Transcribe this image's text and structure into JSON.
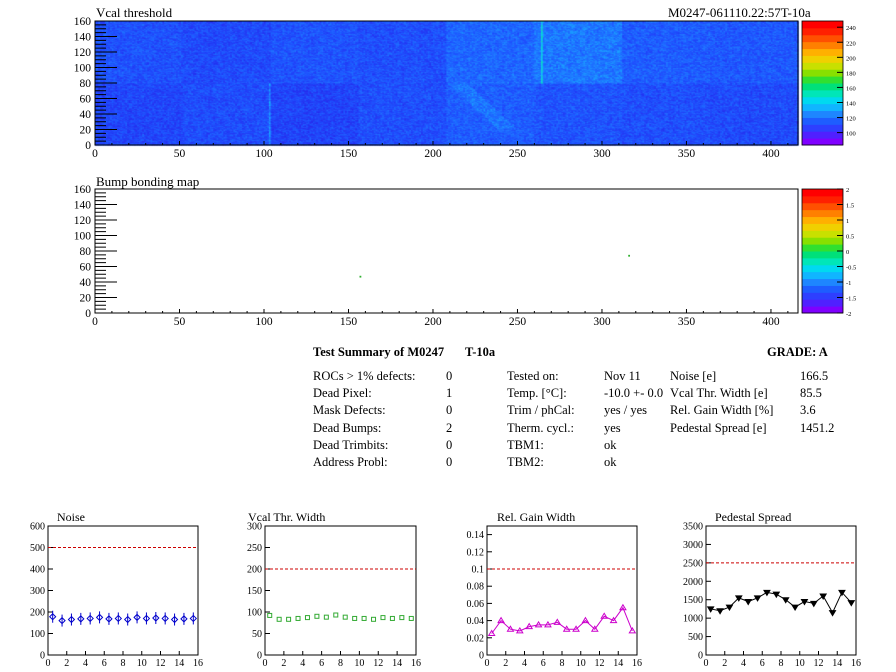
{
  "maps": [
    {
      "title": "Vcal threshold",
      "id_label": "M0247-061110.22:57T-10a",
      "y_ticks": [
        "0",
        "20",
        "40",
        "60",
        "80",
        "100",
        "120",
        "140",
        "160"
      ],
      "x_ticks": [
        "0",
        "50",
        "100",
        "150",
        "200",
        "250",
        "300",
        "350",
        "400"
      ],
      "palette_labels": [
        "100",
        "120",
        "140",
        "160",
        "180",
        "200",
        "220",
        "240"
      ]
    },
    {
      "title": "Bump bonding map",
      "y_ticks": [
        "0",
        "20",
        "40",
        "60",
        "80",
        "100",
        "120",
        "140",
        "160"
      ],
      "x_ticks": [
        "0",
        "50",
        "100",
        "150",
        "200",
        "250",
        "300",
        "350",
        "400"
      ],
      "palette_labels": [
        "-2",
        "-1.5",
        "-1",
        "-0.5",
        "0",
        "0.5",
        "1",
        "1.5",
        "2"
      ]
    }
  ],
  "summary": {
    "title": "Test Summary of M0247",
    "temp_tag": "T-10a",
    "grade": "GRADE:  A",
    "left": [
      {
        "label": "ROCs > 1% defects:",
        "value": "0"
      },
      {
        "label": "Dead Pixel:",
        "value": "1"
      },
      {
        "label": "Mask Defects:",
        "value": "0"
      },
      {
        "label": "Dead Bumps:",
        "value": "2"
      },
      {
        "label": "Dead Trimbits:",
        "value": "0"
      },
      {
        "label": "Address Probl:",
        "value": "0"
      }
    ],
    "middle": [
      {
        "label": "Tested on:",
        "value": "Nov 11"
      },
      {
        "label": "Temp. [°C]:",
        "value": "-10.0 +- 0.0"
      },
      {
        "label": "Trim / phCal:",
        "value": "yes / yes"
      },
      {
        "label": "Therm. cycl.:",
        "value": "yes"
      },
      {
        "label": "TBM1:",
        "value": "ok"
      },
      {
        "label": "TBM2:",
        "value": "ok"
      }
    ],
    "right": [
      {
        "label": "Noise [e]",
        "value": "166.5"
      },
      {
        "label": "Vcal Thr. Width [e]",
        "value": "85.5"
      },
      {
        "label": "Rel. Gain Width [%]",
        "value": "3.6"
      },
      {
        "label": "Pedestal Spread [e]",
        "value": "1451.2"
      }
    ]
  },
  "chart_data": [
    {
      "type": "heatmap",
      "title": "Vcal threshold",
      "xlim": [
        0,
        416
      ],
      "ylim": [
        0,
        160
      ],
      "zlim": [
        90,
        245
      ],
      "roc_grid": {
        "columns": 8,
        "rows": 2,
        "cols_per_roc": 52,
        "rows_per_roc": 80
      }
    },
    {
      "type": "heatmap",
      "title": "Bump bonding map",
      "xlim": [
        0,
        416
      ],
      "ylim": [
        0,
        160
      ],
      "zlim": [
        -2,
        2
      ],
      "points": [
        {
          "x": 157,
          "y": 47
        },
        {
          "x": 316,
          "y": 74
        }
      ]
    },
    {
      "type": "scatter",
      "title": "Noise",
      "x": [
        0,
        1,
        2,
        3,
        4,
        5,
        6,
        7,
        8,
        9,
        10,
        11,
        12,
        13,
        14,
        15
      ],
      "values": [
        178,
        160,
        165,
        168,
        170,
        175,
        168,
        170,
        165,
        175,
        170,
        172,
        170,
        165,
        168,
        170
      ],
      "threshold": 500,
      "xlim": [
        0,
        16
      ],
      "ylim": [
        0,
        600
      ],
      "y_ticks": [
        0,
        100,
        200,
        300,
        400,
        500,
        600
      ],
      "x_ticks": [
        0,
        2,
        4,
        6,
        8,
        10,
        12,
        14,
        16
      ],
      "color": "#0000cc",
      "marker": "diamond",
      "connected": false
    },
    {
      "type": "scatter",
      "title": "Vcal Thr. Width",
      "x": [
        0,
        1,
        2,
        3,
        4,
        5,
        6,
        7,
        8,
        9,
        10,
        11,
        12,
        13,
        14,
        15
      ],
      "values": [
        92,
        83,
        83,
        85,
        87,
        90,
        88,
        93,
        88,
        85,
        85,
        83,
        87,
        85,
        87,
        85
      ],
      "threshold": 200,
      "xlim": [
        0,
        16
      ],
      "ylim": [
        0,
        300
      ],
      "y_ticks": [
        0,
        50,
        100,
        150,
        200,
        250,
        300
      ],
      "x_ticks": [
        0,
        2,
        4,
        6,
        8,
        10,
        12,
        14,
        16
      ],
      "color": "#33aa33",
      "marker": "square",
      "connected": false
    },
    {
      "type": "line",
      "title": "Rel. Gain Width",
      "x": [
        0,
        1,
        2,
        3,
        4,
        5,
        6,
        7,
        8,
        9,
        10,
        11,
        12,
        13,
        14,
        15
      ],
      "values": [
        0.025,
        0.04,
        0.03,
        0.028,
        0.033,
        0.035,
        0.035,
        0.038,
        0.03,
        0.03,
        0.04,
        0.03,
        0.045,
        0.04,
        0.055,
        0.028
      ],
      "threshold": 0.1,
      "xlim": [
        0,
        16
      ],
      "ylim": [
        0,
        0.15
      ],
      "y_ticks": [
        0,
        0.02,
        0.04,
        0.06,
        0.08,
        0.1,
        0.12,
        0.14
      ],
      "x_ticks": [
        0,
        2,
        4,
        6,
        8,
        10,
        12,
        14,
        16
      ],
      "color": "#cc00cc",
      "marker": "triangle",
      "connected": true
    },
    {
      "type": "line",
      "title": "Pedestal Spread",
      "x": [
        0,
        1,
        2,
        3,
        4,
        5,
        6,
        7,
        8,
        9,
        10,
        11,
        12,
        13,
        14,
        15
      ],
      "values": [
        1250,
        1200,
        1300,
        1550,
        1450,
        1550,
        1700,
        1650,
        1500,
        1300,
        1450,
        1400,
        1600,
        1150,
        1700,
        1420
      ],
      "threshold": 2500,
      "xlim": [
        0,
        16
      ],
      "ylim": [
        0,
        3500
      ],
      "y_ticks": [
        0,
        500,
        1000,
        1500,
        2000,
        2500,
        3000,
        3500
      ],
      "x_ticks": [
        0,
        2,
        4,
        6,
        8,
        10,
        12,
        14,
        16
      ],
      "color": "#000000",
      "marker": "triangle-down",
      "connected": true
    }
  ]
}
